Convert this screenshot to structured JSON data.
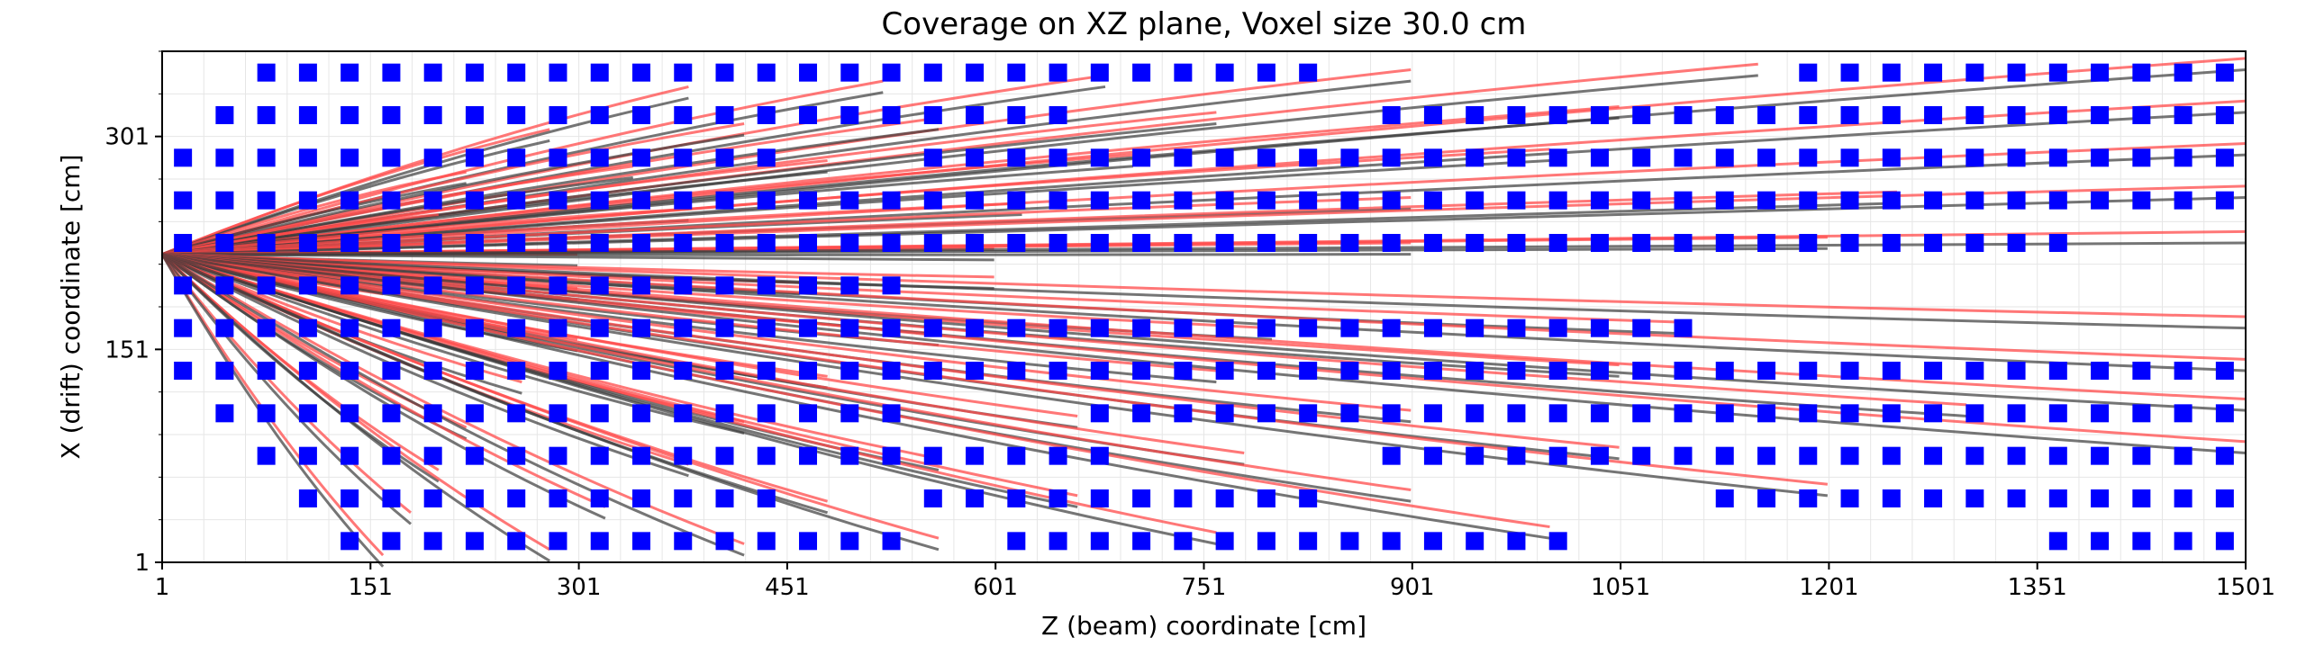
{
  "chart_data": {
    "type": "scatter",
    "title": "Coverage on XZ plane, Voxel size 30.0 cm",
    "xlabel": "Z (beam) coordinate [cm]",
    "ylabel": "X (drift) coordinate [cm]",
    "xlim": [
      1,
      1501
    ],
    "ylim": [
      1,
      361
    ],
    "x_ticks": [
      1,
      151,
      301,
      451,
      601,
      751,
      901,
      1051,
      1201,
      1351,
      1501
    ],
    "x_tick_labels": [
      "1",
      "151",
      "301",
      "451",
      "601",
      "751",
      "901",
      "1051",
      "1201",
      "1351",
      "1501"
    ],
    "y_ticks": [
      1,
      151,
      301
    ],
    "y_tick_labels": [
      "1",
      "151",
      "301"
    ],
    "grid": true,
    "legend": "none",
    "voxel_size_cm": 30,
    "colors": {
      "voxel": "#0000ff",
      "track_true": "#ff4a4a",
      "track_fit": "#3a3a3a",
      "grid": "#e6e6e6"
    },
    "tracks": {
      "origin": [
        1,
        218
      ],
      "rows": [
        346,
        316,
        286,
        256,
        226,
        196,
        166,
        136,
        106,
        76,
        46,
        16
      ],
      "fan_z_ends": [
        [],
        [],
        [],
        [],
        [],
        [],
        [],
        [],
        [],
        [],
        [],
        []
      ]
    },
    "voxel_rows": [
      {
        "x": 346,
        "z": [
          [
            76,
            436
          ],
          [
            466,
            826
          ],
          [
            1186,
            1501
          ]
        ]
      },
      {
        "x": 316,
        "z": [
          [
            46,
            646
          ],
          [
            886,
            1501
          ]
        ]
      },
      {
        "x": 286,
        "z": [
          [
            16,
            436
          ],
          [
            556,
            1501
          ]
        ]
      },
      {
        "x": 256,
        "z": [
          [
            16,
            1501
          ]
        ]
      },
      {
        "x": 226,
        "z": [
          [
            16,
            1366
          ]
        ]
      },
      {
        "x": 196,
        "z": [
          [
            16,
            526
          ]
        ]
      },
      {
        "x": 166,
        "z": [
          [
            16,
            1096
          ]
        ]
      },
      {
        "x": 136,
        "z": [
          [
            16,
            406
          ],
          [
            436,
            1501
          ]
        ]
      },
      {
        "x": 106,
        "z": [
          [
            46,
            526
          ],
          [
            676,
            1501
          ]
        ]
      },
      {
        "x": 76,
        "z": [
          [
            76,
            676
          ],
          [
            886,
            1501
          ]
        ]
      },
      {
        "x": 46,
        "z": [
          [
            106,
            436
          ],
          [
            556,
            826
          ],
          [
            1126,
            1501
          ]
        ]
      },
      {
        "x": 16,
        "z": [
          [
            136,
            526
          ],
          [
            616,
            1006
          ],
          [
            1366,
            1501
          ]
        ]
      }
    ]
  }
}
